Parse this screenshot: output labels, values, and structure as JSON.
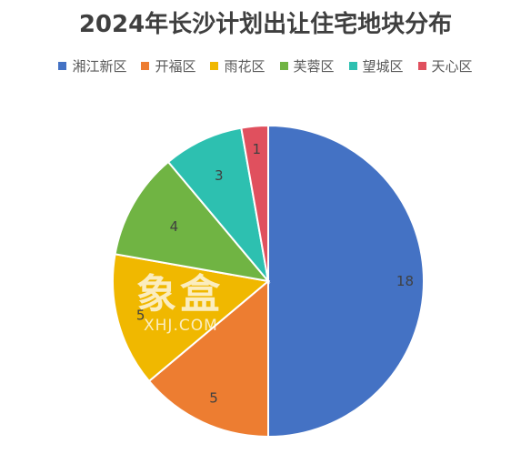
{
  "chart_data": {
    "type": "pie",
    "title": "2024年长沙计划出让住宅地块分布",
    "categories": [
      "湘江新区",
      "开福区",
      "雨花区",
      "芙蓉区",
      "望城区",
      "天心区"
    ],
    "values": [
      18,
      5,
      5,
      4,
      3,
      1
    ],
    "colors": [
      "#4472c4",
      "#ed7d31",
      "#f0b800",
      "#70b443",
      "#2dc0b0",
      "#e0505e"
    ],
    "legend_position": "top",
    "start_angle": "12 o'clock, clockwise"
  },
  "watermark": {
    "main": "象盒",
    "sub": "XHJ.COM"
  }
}
